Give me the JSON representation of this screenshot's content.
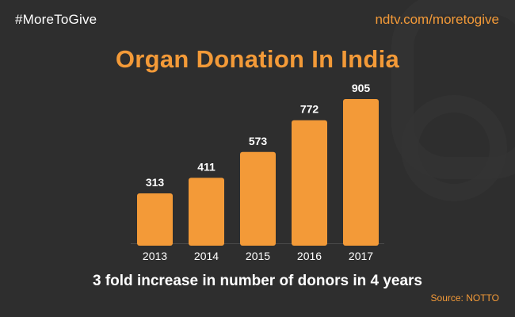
{
  "header": {
    "hashtag": "#MoreToGive",
    "site": "ndtv.com/moretogive"
  },
  "caption": "3 fold increase in number of donors in 4 years",
  "source": "Source: NOTTO",
  "colors": {
    "background": "#2e2e2e",
    "accent": "#f39a38",
    "text": "#ffffff"
  },
  "chart_data": {
    "type": "bar",
    "title": "Organ Donation In India",
    "xlabel": "",
    "ylabel": "",
    "categories": [
      "2013",
      "2014",
      "2015",
      "2016",
      "2017"
    ],
    "values": [
      313,
      411,
      573,
      772,
      905
    ],
    "ylim": [
      0,
      905
    ],
    "grid": false,
    "legend": "none",
    "bar_color": "#f39a38"
  }
}
